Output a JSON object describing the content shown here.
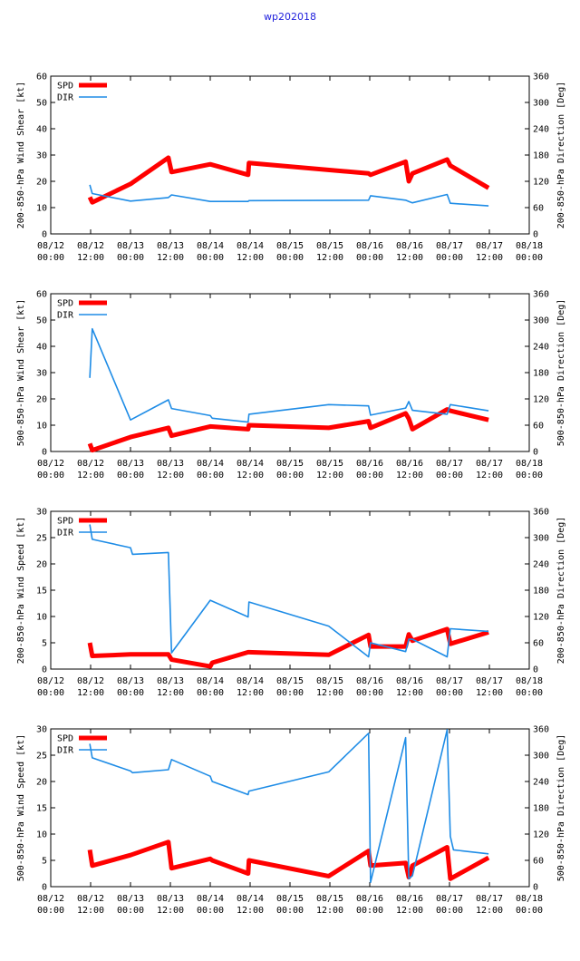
{
  "title": "wp202018",
  "x_tick_labels": [
    [
      "08/12",
      "00:00"
    ],
    [
      "08/12",
      "12:00"
    ],
    [
      "08/13",
      "00:00"
    ],
    [
      "08/13",
      "12:00"
    ],
    [
      "08/14",
      "00:00"
    ],
    [
      "08/14",
      "12:00"
    ],
    [
      "08/15",
      "00:00"
    ],
    [
      "08/15",
      "12:00"
    ],
    [
      "08/16",
      "00:00"
    ],
    [
      "08/16",
      "12:00"
    ],
    [
      "08/17",
      "00:00"
    ],
    [
      "08/17",
      "12:00"
    ],
    [
      "08/18",
      "00:00"
    ]
  ],
  "colors": {
    "spd": "#ff0000",
    "dir": "#1e8ce6"
  },
  "chart_data": [
    {
      "type": "line",
      "ylabel": "200-850-hPa Wind Shear [kt]",
      "y2label": "200-850-hPa Direction [Deg]",
      "ylim": [
        0,
        60
      ],
      "yticks": [
        0,
        10,
        20,
        30,
        40,
        50,
        60
      ],
      "y2lim": [
        0,
        360
      ],
      "y2ticks": [
        0,
        60,
        120,
        180,
        240,
        300,
        360
      ],
      "xlim": [
        0,
        12
      ],
      "legend": [
        "SPD",
        "DIR"
      ],
      "series": [
        {
          "name": "SPD",
          "axis": "left",
          "x": [
            0.98,
            1.04,
            2.0,
            2.95,
            3.03,
            4.0,
            4.95,
            4.97,
            7.97,
            8.02,
            8.9,
            8.98,
            9.07,
            9.94,
            10.02,
            10.98
          ],
          "y": [
            14.0,
            12.0,
            19.0,
            29.0,
            23.5,
            26.5,
            22.5,
            27.0,
            23.0,
            22.5,
            27.5,
            20.0,
            23.0,
            28.3,
            26.0,
            17.5
          ]
        },
        {
          "name": "DIR",
          "axis": "right",
          "x": [
            0.98,
            1.04,
            2.0,
            2.95,
            3.03,
            4.0,
            4.95,
            4.97,
            7.97,
            8.02,
            8.9,
            8.98,
            9.07,
            9.94,
            10.02,
            10.98
          ],
          "y": [
            112,
            92,
            75,
            83,
            89,
            74,
            74,
            76,
            77,
            87,
            77,
            74,
            71,
            90,
            70,
            64
          ]
        }
      ]
    },
    {
      "type": "line",
      "ylabel": "500-850-hPa Wind Shear [kt]",
      "y2label": "500-850-hPa Direction [Deg]",
      "ylim": [
        0,
        60
      ],
      "yticks": [
        0,
        10,
        20,
        30,
        40,
        50,
        60
      ],
      "y2lim": [
        0,
        360
      ],
      "y2ticks": [
        0,
        60,
        120,
        180,
        240,
        300,
        360
      ],
      "xlim": [
        0,
        12
      ],
      "legend": [
        "SPD",
        "DIR"
      ],
      "series": [
        {
          "name": "SPD",
          "axis": "left",
          "x": [
            0.98,
            1.04,
            2.0,
            2.95,
            3.03,
            4.0,
            4.95,
            4.97,
            6.97,
            7.97,
            8.02,
            8.9,
            8.98,
            9.07,
            9.94,
            10.02,
            10.98
          ],
          "y": [
            3.0,
            0.5,
            5.5,
            9.0,
            6.0,
            9.5,
            8.5,
            10.0,
            9.0,
            11.5,
            9.0,
            14.5,
            12.5,
            8.5,
            16.0,
            15.5,
            12.0
          ]
        },
        {
          "name": "DIR",
          "axis": "right",
          "x": [
            0.98,
            1.04,
            2.0,
            2.95,
            3.03,
            4.0,
            4.05,
            4.95,
            4.97,
            6.97,
            7.97,
            8.02,
            8.9,
            8.98,
            9.07,
            9.94,
            10.02,
            10.98
          ],
          "y": [
            168,
            280,
            72,
            118,
            98,
            82,
            76,
            67,
            85,
            107,
            104,
            83,
            99,
            114,
            94,
            85,
            107,
            93
          ]
        }
      ]
    },
    {
      "type": "line",
      "ylabel": "200-850-hPa Wind Speed [kt]",
      "y2label": "200-850-hPa Direction [Deg]",
      "ylim": [
        0,
        30
      ],
      "yticks": [
        0,
        5,
        10,
        15,
        20,
        25,
        30
      ],
      "y2lim": [
        0,
        360
      ],
      "y2ticks": [
        0,
        60,
        120,
        180,
        240,
        300,
        360
      ],
      "xlim": [
        0,
        12
      ],
      "legend": [
        "SPD",
        "DIR"
      ],
      "series": [
        {
          "name": "SPD",
          "axis": "left",
          "x": [
            0.98,
            1.04,
            2.0,
            2.95,
            3.03,
            4.0,
            4.05,
            4.95,
            4.97,
            6.97,
            7.97,
            8.02,
            8.9,
            8.98,
            9.07,
            9.94,
            10.02,
            10.98
          ],
          "y": [
            5.0,
            2.5,
            2.8,
            2.8,
            1.8,
            0.5,
            1.2,
            3.2,
            3.2,
            2.7,
            6.5,
            4.3,
            4.3,
            6.6,
            5.4,
            7.6,
            4.8,
            7.0
          ]
        },
        {
          "name": "DIR",
          "axis": "right",
          "x": [
            0.98,
            1.04,
            2.0,
            2.05,
            2.95,
            3.03,
            4.0,
            4.95,
            4.97,
            6.97,
            7.97,
            8.02,
            8.9,
            8.98,
            9.07,
            9.94,
            10.02,
            10.98
          ],
          "y": [
            330,
            296,
            277,
            262,
            266,
            37,
            157,
            119,
            153,
            98,
            28,
            60,
            40,
            68,
            68,
            28,
            92,
            86
          ]
        }
      ]
    },
    {
      "type": "line",
      "ylabel": "500-850-hPa Wind Speed [kt]",
      "y2label": "500-850-hPa Direction [Deg]",
      "ylim": [
        0,
        30
      ],
      "yticks": [
        0,
        5,
        10,
        15,
        20,
        25,
        30
      ],
      "y2lim": [
        0,
        360
      ],
      "y2ticks": [
        0,
        60,
        120,
        180,
        240,
        300,
        360
      ],
      "xlim": [
        0,
        12
      ],
      "legend": [
        "SPD",
        "DIR"
      ],
      "series": [
        {
          "name": "SPD",
          "axis": "left",
          "x": [
            0.98,
            1.04,
            2.0,
            2.95,
            3.03,
            4.0,
            4.05,
            4.95,
            4.97,
            6.97,
            7.97,
            8.02,
            8.9,
            8.98,
            9.07,
            9.94,
            10.02,
            10.98
          ],
          "y": [
            7.0,
            4.0,
            6.0,
            8.5,
            3.5,
            5.3,
            5.0,
            2.5,
            5.0,
            2.0,
            6.8,
            4.0,
            4.5,
            1.8,
            4.0,
            7.5,
            1.5,
            5.5
          ]
        },
        {
          "name": "DIR",
          "axis": "right",
          "x": [
            0.98,
            1.04,
            2.0,
            2.05,
            2.95,
            3.03,
            4.0,
            4.05,
            4.95,
            4.97,
            6.97,
            7.97,
            8.02,
            8.9,
            8.98,
            9.07,
            9.94,
            10.02,
            10.1,
            10.98
          ],
          "y": [
            326,
            294,
            264,
            260,
            267,
            290,
            252,
            240,
            210,
            218,
            262,
            350,
            10,
            340,
            18,
            25,
            358,
            115,
            84,
            75
          ]
        }
      ]
    }
  ]
}
